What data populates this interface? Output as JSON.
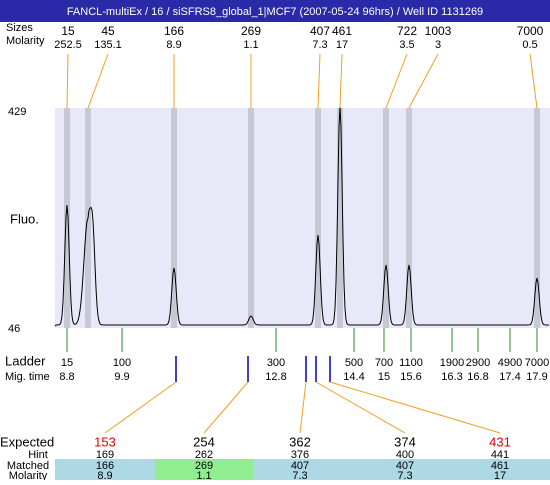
{
  "header": {
    "title": "FANCL-multiEx / 16 / siSFRS8_global_1|MCF7 (2007-05-24 96hrs) / Well ID 1131269"
  },
  "top": {
    "size_label": "Sizes",
    "molarity_label": "Molarity",
    "sizes": [
      15,
      45,
      166,
      269,
      407,
      461,
      722,
      1003,
      7000
    ],
    "molarities": [
      252.5,
      135.1,
      8.9,
      1.1,
      7.3,
      17,
      3.5,
      3,
      0.5
    ]
  },
  "plot": {
    "y_max_label": "429",
    "y_min_label": "46",
    "y_label": "Fluo."
  },
  "ladder": {
    "label": "Ladder",
    "mig_label": "Mig. time",
    "sizes": [
      15,
      100,
      300,
      500,
      700,
      1100,
      1900,
      2900,
      4900,
      7000
    ],
    "mig_times": [
      8.8,
      9.9,
      12.8,
      14.4,
      15,
      15.6,
      16.3,
      16.8,
      17.4,
      17.9
    ]
  },
  "table": {
    "expected_label": "Expected",
    "hint_label": "Hint",
    "matched_label": "Matched",
    "molarity_label": "Molarity",
    "expected": [
      {
        "value": 153,
        "color": "#e00000"
      },
      {
        "value": 254,
        "color": "#000000"
      },
      {
        "value": 362,
        "color": "#000000"
      },
      {
        "value": 374,
        "color": "#000000"
      },
      {
        "value": 431,
        "color": "#e00000"
      }
    ],
    "hint": [
      169,
      262,
      376,
      400,
      441
    ],
    "matched": [
      {
        "value": 166,
        "color": "#add8e6"
      },
      {
        "value": 269,
        "color": "#90ee90"
      },
      {
        "value": 407,
        "color": "#add8e6"
      },
      {
        "value": 407,
        "color": "#add8e6"
      },
      {
        "value": 461,
        "color": "#add8e6"
      }
    ],
    "molarity": [
      8.9,
      1.1,
      7.3,
      7.3,
      17
    ]
  }
}
